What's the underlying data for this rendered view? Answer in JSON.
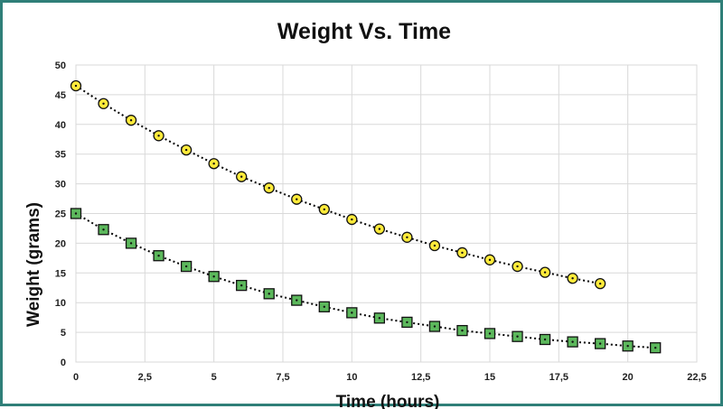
{
  "chart_data": {
    "type": "scatter",
    "title": "Weight Vs. Time",
    "xlabel": "Time  (hours)",
    "ylabel": "Weight  (grams)",
    "xlim": [
      0,
      22.5
    ],
    "ylim": [
      0,
      50
    ],
    "x_ticks": [
      "0",
      "2,5",
      "5",
      "7,5",
      "10",
      "12,5",
      "15",
      "17,5",
      "20",
      "22,5"
    ],
    "y_ticks": [
      "0",
      "5",
      "10",
      "15",
      "20",
      "25",
      "30",
      "35",
      "40",
      "45",
      "50"
    ],
    "grid": true,
    "legend": "none",
    "series": [
      {
        "marker": "circle",
        "color": "#ffeb3b",
        "trendline": "dotted",
        "x": [
          0,
          1,
          2,
          3,
          4,
          5,
          6,
          7,
          8,
          9,
          10,
          11,
          12,
          13,
          14,
          15,
          16,
          17,
          18,
          19
        ],
        "y": [
          46.5,
          43.5,
          40.7,
          38.1,
          35.7,
          33.4,
          31.2,
          29.3,
          27.4,
          25.7,
          24.0,
          22.4,
          21.0,
          19.6,
          18.4,
          17.2,
          16.1,
          15.1,
          14.1,
          13.2
        ]
      },
      {
        "marker": "square",
        "color": "#5cb85c",
        "trendline": "dotted",
        "x": [
          0,
          1,
          2,
          3,
          4,
          5,
          6,
          7,
          8,
          9,
          10,
          11,
          12,
          13,
          14,
          15,
          16,
          17,
          18,
          19,
          20,
          21
        ],
        "y": [
          25.0,
          22.3,
          20.0,
          17.9,
          16.1,
          14.4,
          12.9,
          11.5,
          10.4,
          9.3,
          8.3,
          7.4,
          6.7,
          6.0,
          5.3,
          4.8,
          4.3,
          3.8,
          3.4,
          3.1,
          2.7,
          2.4
        ]
      }
    ]
  }
}
